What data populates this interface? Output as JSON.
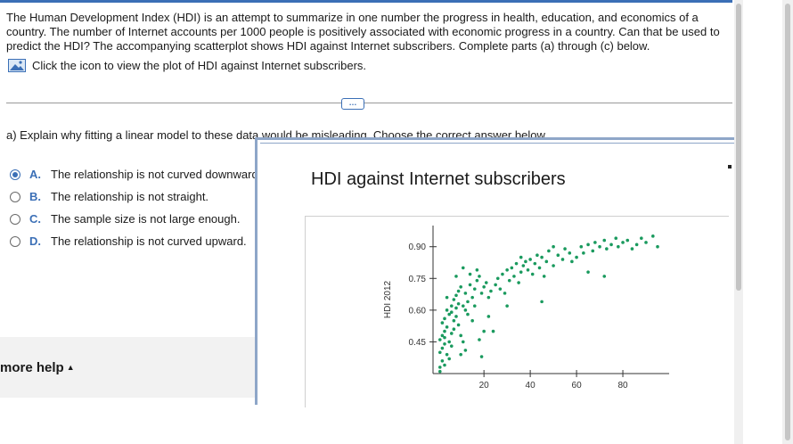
{
  "question": {
    "text": "The Human Development Index (HDI) is an attempt to summarize in one number the progress in health, education, and economics of a country. The number of Internet accounts per 1000 people is positively associated with economic progress in a country. Can that be used to predict the HDI? The accompanying scatterplot shows HDI against Internet subscribers. Complete parts (a) through (c) below.",
    "hint": "Click the icon to view the plot of HDI against Internet subscribers."
  },
  "expand_label": "…",
  "part_a": {
    "prompt": "a) Explain why fitting a linear model to these data would be misleading. Choose the correct answer below.",
    "options": [
      {
        "letter": "A.",
        "text": "The relationship is not curved downward.",
        "selected": true
      },
      {
        "letter": "B.",
        "text": "The relationship is not straight.",
        "selected": false
      },
      {
        "letter": "C.",
        "text": "The sample size is not large enough.",
        "selected": false
      },
      {
        "letter": "D.",
        "text": "The relationship is not curved upward.",
        "selected": false
      }
    ]
  },
  "more_help": "more help",
  "popup": {
    "title": "HDI against Internet subscribers"
  },
  "colors": {
    "accent": "#3b6fb6",
    "points": "#1a9a5e"
  },
  "chart_data": {
    "type": "scatter",
    "title": "HDI against Internet subscribers",
    "xlabel": "",
    "ylabel": "HDI 2012",
    "xlim": [
      -2,
      100
    ],
    "ylim": [
      0.3,
      1.0
    ],
    "xticks": [
      20,
      40,
      60,
      80
    ],
    "yticks": [
      0.45,
      0.6,
      0.75,
      0.9
    ],
    "ytick_labels": [
      "0.45",
      "0.60",
      "0.75",
      "0.90"
    ],
    "points": [
      [
        1,
        0.31
      ],
      [
        1,
        0.33
      ],
      [
        2,
        0.36
      ],
      [
        1,
        0.4
      ],
      [
        2,
        0.42
      ],
      [
        3,
        0.44
      ],
      [
        1,
        0.46
      ],
      [
        2,
        0.48
      ],
      [
        3,
        0.5
      ],
      [
        4,
        0.52
      ],
      [
        2,
        0.54
      ],
      [
        3,
        0.56
      ],
      [
        5,
        0.58
      ],
      [
        4,
        0.6
      ],
      [
        6,
        0.62
      ],
      [
        3,
        0.47
      ],
      [
        5,
        0.45
      ],
      [
        6,
        0.49
      ],
      [
        7,
        0.51
      ],
      [
        4,
        0.39
      ],
      [
        5,
        0.37
      ],
      [
        3,
        0.34
      ],
      [
        6,
        0.43
      ],
      [
        7,
        0.55
      ],
      [
        8,
        0.57
      ],
      [
        6,
        0.59
      ],
      [
        8,
        0.61
      ],
      [
        9,
        0.63
      ],
      [
        7,
        0.65
      ],
      [
        8,
        0.67
      ],
      [
        9,
        0.69
      ],
      [
        10,
        0.71
      ],
      [
        11,
        0.62
      ],
      [
        9,
        0.53
      ],
      [
        10,
        0.48
      ],
      [
        11,
        0.45
      ],
      [
        12,
        0.6
      ],
      [
        13,
        0.64
      ],
      [
        12,
        0.68
      ],
      [
        14,
        0.72
      ],
      [
        15,
        0.66
      ],
      [
        13,
        0.58
      ],
      [
        12,
        0.41
      ],
      [
        10,
        0.39
      ],
      [
        16,
        0.7
      ],
      [
        17,
        0.74
      ],
      [
        18,
        0.76
      ],
      [
        16,
        0.62
      ],
      [
        19,
        0.68
      ],
      [
        15,
        0.55
      ],
      [
        20,
        0.71
      ],
      [
        21,
        0.73
      ],
      [
        22,
        0.66
      ],
      [
        23,
        0.69
      ],
      [
        20,
        0.5
      ],
      [
        18,
        0.46
      ],
      [
        25,
        0.72
      ],
      [
        26,
        0.75
      ],
      [
        27,
        0.7
      ],
      [
        28,
        0.77
      ],
      [
        29,
        0.68
      ],
      [
        30,
        0.79
      ],
      [
        31,
        0.74
      ],
      [
        32,
        0.8
      ],
      [
        33,
        0.76
      ],
      [
        34,
        0.82
      ],
      [
        35,
        0.73
      ],
      [
        36,
        0.78
      ],
      [
        37,
        0.81
      ],
      [
        38,
        0.83
      ],
      [
        39,
        0.79
      ],
      [
        40,
        0.84
      ],
      [
        41,
        0.77
      ],
      [
        42,
        0.82
      ],
      [
        43,
        0.86
      ],
      [
        44,
        0.8
      ],
      [
        45,
        0.85
      ],
      [
        46,
        0.76
      ],
      [
        47,
        0.83
      ],
      [
        48,
        0.88
      ],
      [
        50,
        0.81
      ],
      [
        52,
        0.86
      ],
      [
        54,
        0.84
      ],
      [
        55,
        0.89
      ],
      [
        57,
        0.87
      ],
      [
        45,
        0.64
      ],
      [
        60,
        0.85
      ],
      [
        62,
        0.9
      ],
      [
        63,
        0.87
      ],
      [
        65,
        0.91
      ],
      [
        67,
        0.88
      ],
      [
        68,
        0.92
      ],
      [
        70,
        0.9
      ],
      [
        72,
        0.93
      ],
      [
        73,
        0.89
      ],
      [
        75,
        0.91
      ],
      [
        77,
        0.94
      ],
      [
        78,
        0.9
      ],
      [
        80,
        0.92
      ],
      [
        82,
        0.93
      ],
      [
        84,
        0.89
      ],
      [
        86,
        0.91
      ],
      [
        88,
        0.94
      ],
      [
        90,
        0.92
      ],
      [
        93,
        0.95
      ],
      [
        95,
        0.9
      ],
      [
        65,
        0.78
      ],
      [
        72,
        0.76
      ],
      [
        30,
        0.62
      ],
      [
        24,
        0.5
      ],
      [
        14,
        0.77
      ],
      [
        17,
        0.79
      ],
      [
        8,
        0.76
      ],
      [
        11,
        0.8
      ],
      [
        22,
        0.57
      ],
      [
        19,
        0.38
      ],
      [
        4,
        0.66
      ],
      [
        36,
        0.85
      ],
      [
        50,
        0.9
      ],
      [
        58,
        0.83
      ]
    ]
  }
}
